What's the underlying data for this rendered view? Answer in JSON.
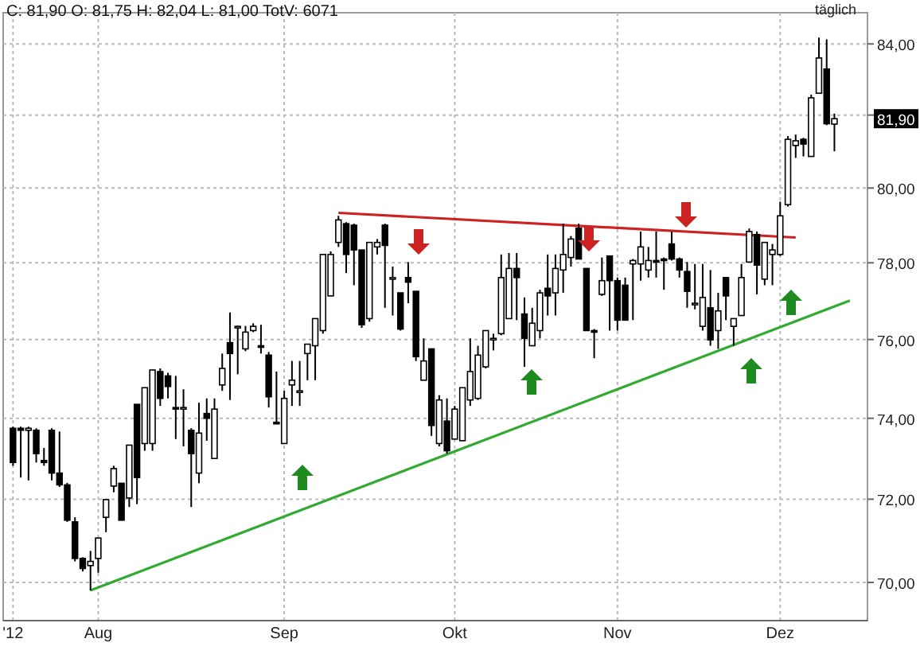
{
  "chart_data": {
    "type": "candlestick",
    "title": "C: 81,90 O: 81,75 H: 82,04 L: 81,00 TotV: 6071",
    "categories": [
      "'12",
      null,
      null,
      null,
      null,
      null,
      null,
      null,
      null,
      null,
      null,
      "Aug",
      null,
      null,
      null,
      null,
      null,
      null,
      null,
      null,
      null,
      null,
      null,
      null,
      null,
      null,
      null,
      null,
      null,
      null,
      null,
      null,
      null,
      null,
      null,
      "Sep",
      null,
      null,
      null,
      null,
      null,
      null,
      null,
      null,
      null,
      null,
      null,
      null,
      null,
      null,
      null,
      null,
      null,
      null,
      null,
      null,
      null,
      "Okt",
      null,
      null,
      null,
      null,
      null,
      null,
      null,
      null,
      null,
      null,
      null,
      null,
      null,
      null,
      null,
      null,
      null,
      null,
      null,
      null,
      "Nov",
      null,
      null,
      null,
      null,
      null,
      null,
      null,
      null,
      null,
      null,
      null,
      null,
      null,
      null,
      null,
      null,
      null,
      null,
      null,
      null,
      "Dez",
      null,
      null,
      null,
      null,
      null,
      null,
      null,
      null,
      null,
      null
    ],
    "ohlc": [
      [
        73.75,
        73.79,
        72.82,
        72.9
      ],
      [
        73.75,
        73.79,
        72.53,
        73.7
      ],
      [
        73.7,
        73.79,
        72.46,
        73.75
      ],
      [
        73.7,
        73.75,
        72.9,
        73.12
      ],
      [
        72.95,
        73.26,
        72.82,
        72.9
      ],
      [
        73.7,
        73.75,
        72.46,
        72.64
      ],
      [
        72.64,
        73.67,
        72.3,
        72.35
      ],
      [
        72.35,
        72.4,
        71.45,
        71.49
      ],
      [
        71.45,
        71.56,
        70.5,
        70.57
      ],
      [
        70.57,
        70.6,
        70.26,
        70.33
      ],
      [
        70.4,
        70.75,
        69.81,
        70.5
      ],
      [
        70.57,
        71.06,
        70.23,
        71.06
      ],
      [
        71.56,
        71.99,
        71.2,
        71.99
      ],
      [
        72.32,
        72.82,
        72.17,
        72.75
      ],
      [
        72.39,
        72.39,
        71.49,
        71.49
      ],
      [
        72.03,
        73.33,
        71.81,
        73.33
      ],
      [
        74.35,
        74.35,
        71.88,
        72.53
      ],
      [
        73.37,
        74.77,
        73.19,
        74.77
      ],
      [
        73.37,
        75.22,
        73.19,
        75.22
      ],
      [
        75.18,
        75.26,
        74.31,
        74.5
      ],
      [
        75.07,
        75.15,
        74.5,
        74.8
      ],
      [
        74.27,
        75.07,
        73.48,
        74.23
      ],
      [
        74.23,
        74.73,
        73.3,
        74.27
      ],
      [
        73.7,
        73.75,
        71.81,
        73.12
      ],
      [
        72.64,
        74.39,
        72.39,
        73.63
      ],
      [
        74.12,
        74.5,
        73.44,
        74.0
      ],
      [
        73.0,
        74.5,
        73.0,
        74.23
      ],
      [
        74.84,
        75.64,
        74.69,
        75.26
      ],
      [
        75.92,
        76.7,
        74.46,
        75.64
      ],
      [
        76.3,
        76.35,
        75.11,
        76.34
      ],
      [
        75.76,
        76.35,
        75.7,
        76.19
      ],
      [
        76.23,
        76.42,
        76.19,
        76.34
      ],
      [
        75.84,
        76.38,
        75.64,
        75.8
      ],
      [
        75.6,
        75.68,
        74.27,
        74.54
      ],
      [
        73.9,
        75.18,
        73.86,
        73.86
      ],
      [
        73.37,
        74.69,
        73.37,
        74.5
      ],
      [
        74.84,
        75.45,
        74.31,
        74.96
      ],
      [
        74.65,
        75.45,
        74.31,
        74.69
      ],
      [
        75.64,
        75.88,
        74.96,
        75.88
      ],
      [
        75.84,
        76.54,
        74.96,
        76.54
      ],
      [
        76.23,
        78.22,
        76.15,
        78.22
      ],
      [
        77.13,
        78.3,
        77.13,
        78.22
      ],
      [
        78.54,
        79.25,
        78.42,
        79.14
      ],
      [
        79.04,
        79.08,
        77.73,
        78.22
      ],
      [
        79.0,
        79.04,
        77.41,
        78.34
      ],
      [
        78.34,
        78.34,
        76.3,
        76.38
      ],
      [
        76.54,
        78.54,
        76.46,
        78.54
      ],
      [
        78.42,
        78.63,
        78.22,
        78.54
      ],
      [
        79.0,
        79.04,
        76.82,
        78.46
      ],
      [
        77.61,
        77.9,
        76.62,
        77.61
      ],
      [
        77.21,
        77.21,
        76.23,
        76.27
      ],
      [
        77.61,
        78.02,
        76.94,
        77.49
      ],
      [
        77.25,
        77.25,
        75.45,
        75.56
      ],
      [
        74.96,
        76.03,
        74.96,
        75.45
      ],
      [
        75.76,
        75.76,
        73.56,
        73.82
      ],
      [
        73.37,
        74.58,
        73.3,
        74.46
      ],
      [
        73.93,
        74.5,
        73.12,
        73.19
      ],
      [
        73.48,
        74.31,
        73.48,
        74.23
      ],
      [
        73.44,
        74.77,
        73.44,
        74.77
      ],
      [
        74.46,
        76.03,
        74.31,
        75.18
      ],
      [
        74.5,
        75.84,
        74.46,
        75.6
      ],
      [
        75.3,
        76.23,
        75.26,
        76.23
      ],
      [
        76.0,
        76.15,
        75.72,
        76.03
      ],
      [
        76.15,
        78.22,
        76.11,
        77.61
      ],
      [
        76.54,
        78.26,
        76.54,
        77.85
      ],
      [
        77.85,
        78.26,
        76.5,
        77.61
      ],
      [
        76.66,
        77.09,
        75.3,
        76.03
      ],
      [
        75.84,
        76.82,
        75.84,
        76.42
      ],
      [
        76.23,
        77.29,
        76.03,
        77.21
      ],
      [
        77.33,
        78.22,
        76.62,
        77.13
      ],
      [
        77.21,
        78.22,
        76.62,
        77.85
      ],
      [
        77.81,
        79.04,
        77.21,
        78.22
      ],
      [
        78.14,
        78.71,
        77.9,
        78.63
      ],
      [
        78.92,
        79.04,
        78.1,
        78.1
      ],
      [
        77.85,
        77.85,
        76.23,
        76.23
      ],
      [
        76.23,
        76.27,
        75.52,
        76.19
      ],
      [
        77.17,
        78.14,
        77.13,
        77.53
      ],
      [
        78.18,
        78.18,
        76.23,
        77.53
      ],
      [
        77.53,
        77.61,
        76.23,
        76.5
      ],
      [
        77.41,
        77.61,
        76.5,
        76.5
      ],
      [
        77.97,
        78.1,
        76.5,
        78.06
      ],
      [
        77.97,
        78.83,
        77.53,
        78.42
      ],
      [
        77.81,
        78.42,
        77.61,
        78.06
      ],
      [
        78.06,
        78.83,
        77.61,
        78.02
      ],
      [
        78.1,
        78.14,
        77.29,
        78.06
      ],
      [
        78.5,
        78.83,
        78.06,
        78.1
      ],
      [
        78.1,
        78.14,
        77.61,
        77.81
      ],
      [
        77.77,
        78.02,
        76.82,
        77.25
      ],
      [
        76.9,
        77.97,
        76.78,
        76.94
      ],
      [
        76.34,
        77.97,
        76.23,
        77.09
      ],
      [
        76.82,
        77.81,
        75.84,
        75.99
      ],
      [
        76.23,
        77.21,
        75.76,
        76.74
      ],
      [
        77.61,
        77.61,
        76.5,
        77.13
      ],
      [
        76.34,
        76.54,
        75.84,
        76.54
      ],
      [
        76.62,
        77.97,
        76.62,
        77.61
      ],
      [
        78.02,
        78.91,
        78.02,
        78.83
      ],
      [
        78.75,
        78.83,
        77.17,
        77.94
      ],
      [
        77.57,
        78.54,
        77.41,
        78.54
      ],
      [
        78.22,
        78.5,
        77.41,
        78.34
      ],
      [
        78.22,
        79.63,
        78.18,
        79.25
      ],
      [
        79.55,
        81.42,
        79.5,
        81.33
      ],
      [
        81.16,
        81.46,
        80.82,
        81.29
      ],
      [
        81.33,
        81.37,
        80.86,
        81.2
      ],
      [
        80.86,
        82.57,
        80.86,
        82.48
      ],
      [
        82.61,
        84.18,
        82.61,
        83.6
      ],
      [
        83.29,
        84.13,
        81.72,
        81.76
      ],
      [
        81.75,
        82.04,
        81.0,
        81.9
      ],
      null,
      null,
      null
    ],
    "series": [
      {
        "type": "line",
        "color": "#cc2222",
        "values": [
          null,
          null,
          null,
          null,
          null,
          null,
          null,
          null,
          null,
          null,
          null,
          null,
          null,
          null,
          null,
          null,
          null,
          null,
          null,
          null,
          null,
          null,
          null,
          null,
          null,
          null,
          null,
          null,
          null,
          null,
          null,
          null,
          null,
          null,
          null,
          null,
          null,
          null,
          null,
          null,
          null,
          null,
          79.33,
          null,
          null,
          null,
          null,
          null,
          null,
          null,
          null,
          null,
          null,
          null,
          null,
          null,
          null,
          null,
          null,
          null,
          null,
          null,
          null,
          null,
          null,
          null,
          null,
          null,
          null,
          null,
          null,
          null,
          null,
          null,
          null,
          null,
          null,
          null,
          null,
          null,
          null,
          null,
          null,
          null,
          null,
          null,
          null,
          null,
          null,
          null,
          null,
          null,
          null,
          null,
          null,
          null,
          null,
          null,
          null,
          null,
          null,
          78.67,
          null,
          null,
          null,
          null,
          null,
          null,
          null,
          null
        ]
      },
      {
        "type": "line",
        "color": "#33aa33",
        "values": [
          null,
          null,
          null,
          null,
          null,
          null,
          null,
          null,
          null,
          null,
          69.81,
          null,
          null,
          null,
          null,
          null,
          null,
          null,
          null,
          null,
          null,
          null,
          null,
          null,
          null,
          null,
          null,
          null,
          null,
          null,
          null,
          null,
          null,
          null,
          null,
          null,
          null,
          null,
          null,
          null,
          null,
          null,
          null,
          null,
          null,
          null,
          null,
          null,
          null,
          null,
          null,
          null,
          null,
          null,
          null,
          null,
          null,
          null,
          null,
          null,
          null,
          null,
          null,
          null,
          null,
          null,
          null,
          null,
          null,
          null,
          null,
          null,
          null,
          null,
          null,
          null,
          null,
          null,
          null,
          null,
          null,
          null,
          null,
          null,
          null,
          null,
          null,
          null,
          null,
          null,
          null,
          null,
          null,
          null,
          null,
          null,
          null,
          null,
          null,
          null,
          null,
          null,
          null,
          null,
          null,
          null,
          null,
          null,
          77.01,
          null
        ]
      }
    ],
    "ylim": [
      69.1,
      84.8
    ],
    "yticks": [
      {
        "value": 70,
        "label": "70,00"
      },
      {
        "value": 72,
        "label": "72,00"
      },
      {
        "value": 74,
        "label": "74,00"
      },
      {
        "value": 76,
        "label": "76,00"
      },
      {
        "value": 78,
        "label": "78,00"
      },
      {
        "value": 80,
        "label": "80,00"
      },
      {
        "value": 82,
        "label": null
      },
      {
        "value": 84,
        "label": "84,00"
      }
    ],
    "log": true,
    "grid": true,
    "annotations": [
      "täglich",
      "81,90"
    ]
  }
}
